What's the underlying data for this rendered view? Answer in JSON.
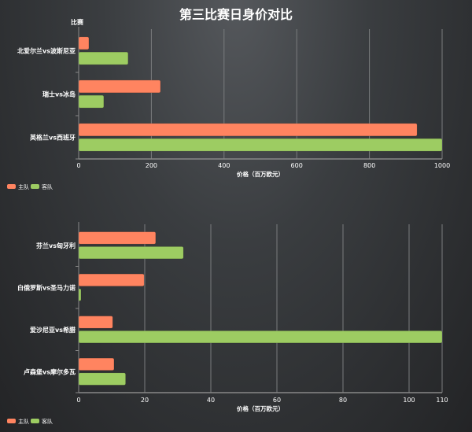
{
  "title": "第三比赛日身价对比",
  "colors": {
    "home": "#ff8460",
    "away": "#9dcc62",
    "grid": "#7a7c7e"
  },
  "chart_data": [
    {
      "type": "bar",
      "orientation": "horizontal",
      "ylabel": "比赛",
      "xlabel": "价格（百万欧元）",
      "categories": [
        "北爱尔兰vs波斯尼亚",
        "瑞士vs冰岛",
        "英格兰vs西班牙"
      ],
      "series": [
        {
          "name": "主队",
          "values": [
            28,
            225,
            931
          ]
        },
        {
          "name": "客队",
          "values": [
            136,
            69,
            1000
          ]
        }
      ],
      "xlim": [
        0,
        1000
      ],
      "xticks": [
        0,
        200,
        400,
        600,
        800,
        1000
      ],
      "grid": true,
      "legend": "bottom-left"
    },
    {
      "type": "bar",
      "orientation": "horizontal",
      "xlabel": "价格（百万欧元）",
      "categories": [
        "芬兰vs匈牙利",
        "白俄罗斯vs圣马力诺",
        "爱沙尼亚vs希腊",
        "卢森堡vs摩尔多瓦"
      ],
      "series": [
        {
          "name": "主队",
          "values": [
            23.3,
            19.8,
            10.3,
            10.7
          ]
        },
        {
          "name": "客队",
          "values": [
            31.7,
            0.7,
            110,
            14.2
          ]
        }
      ],
      "xlim": [
        0,
        110
      ],
      "xticks": [
        0,
        20,
        40,
        60,
        80,
        100,
        110
      ],
      "grid": true,
      "legend": "bottom-left"
    }
  ]
}
